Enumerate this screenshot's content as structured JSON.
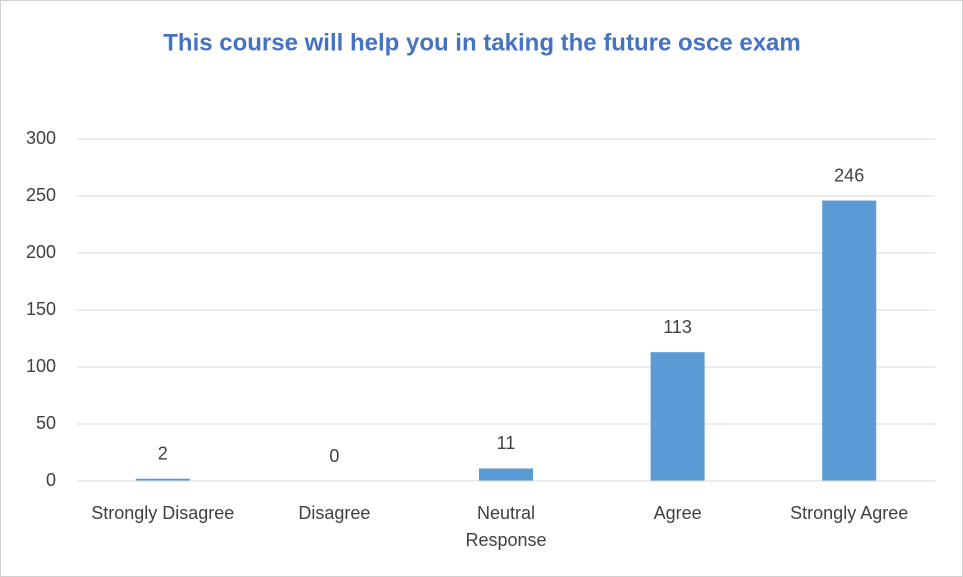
{
  "chart_data": {
    "type": "bar",
    "title": "This course will help you in taking the future osce exam",
    "categories": [
      "Strongly Disagree",
      "Disagree",
      "Neutral Response",
      "Agree",
      "Strongly Agree"
    ],
    "values": [
      2,
      0,
      11,
      113,
      246
    ],
    "color": "#5b9bd5",
    "ylim": [
      0,
      300
    ],
    "yticks": [
      0,
      50,
      100,
      150,
      200,
      250,
      300
    ],
    "grid": true,
    "data_labels": true
  }
}
